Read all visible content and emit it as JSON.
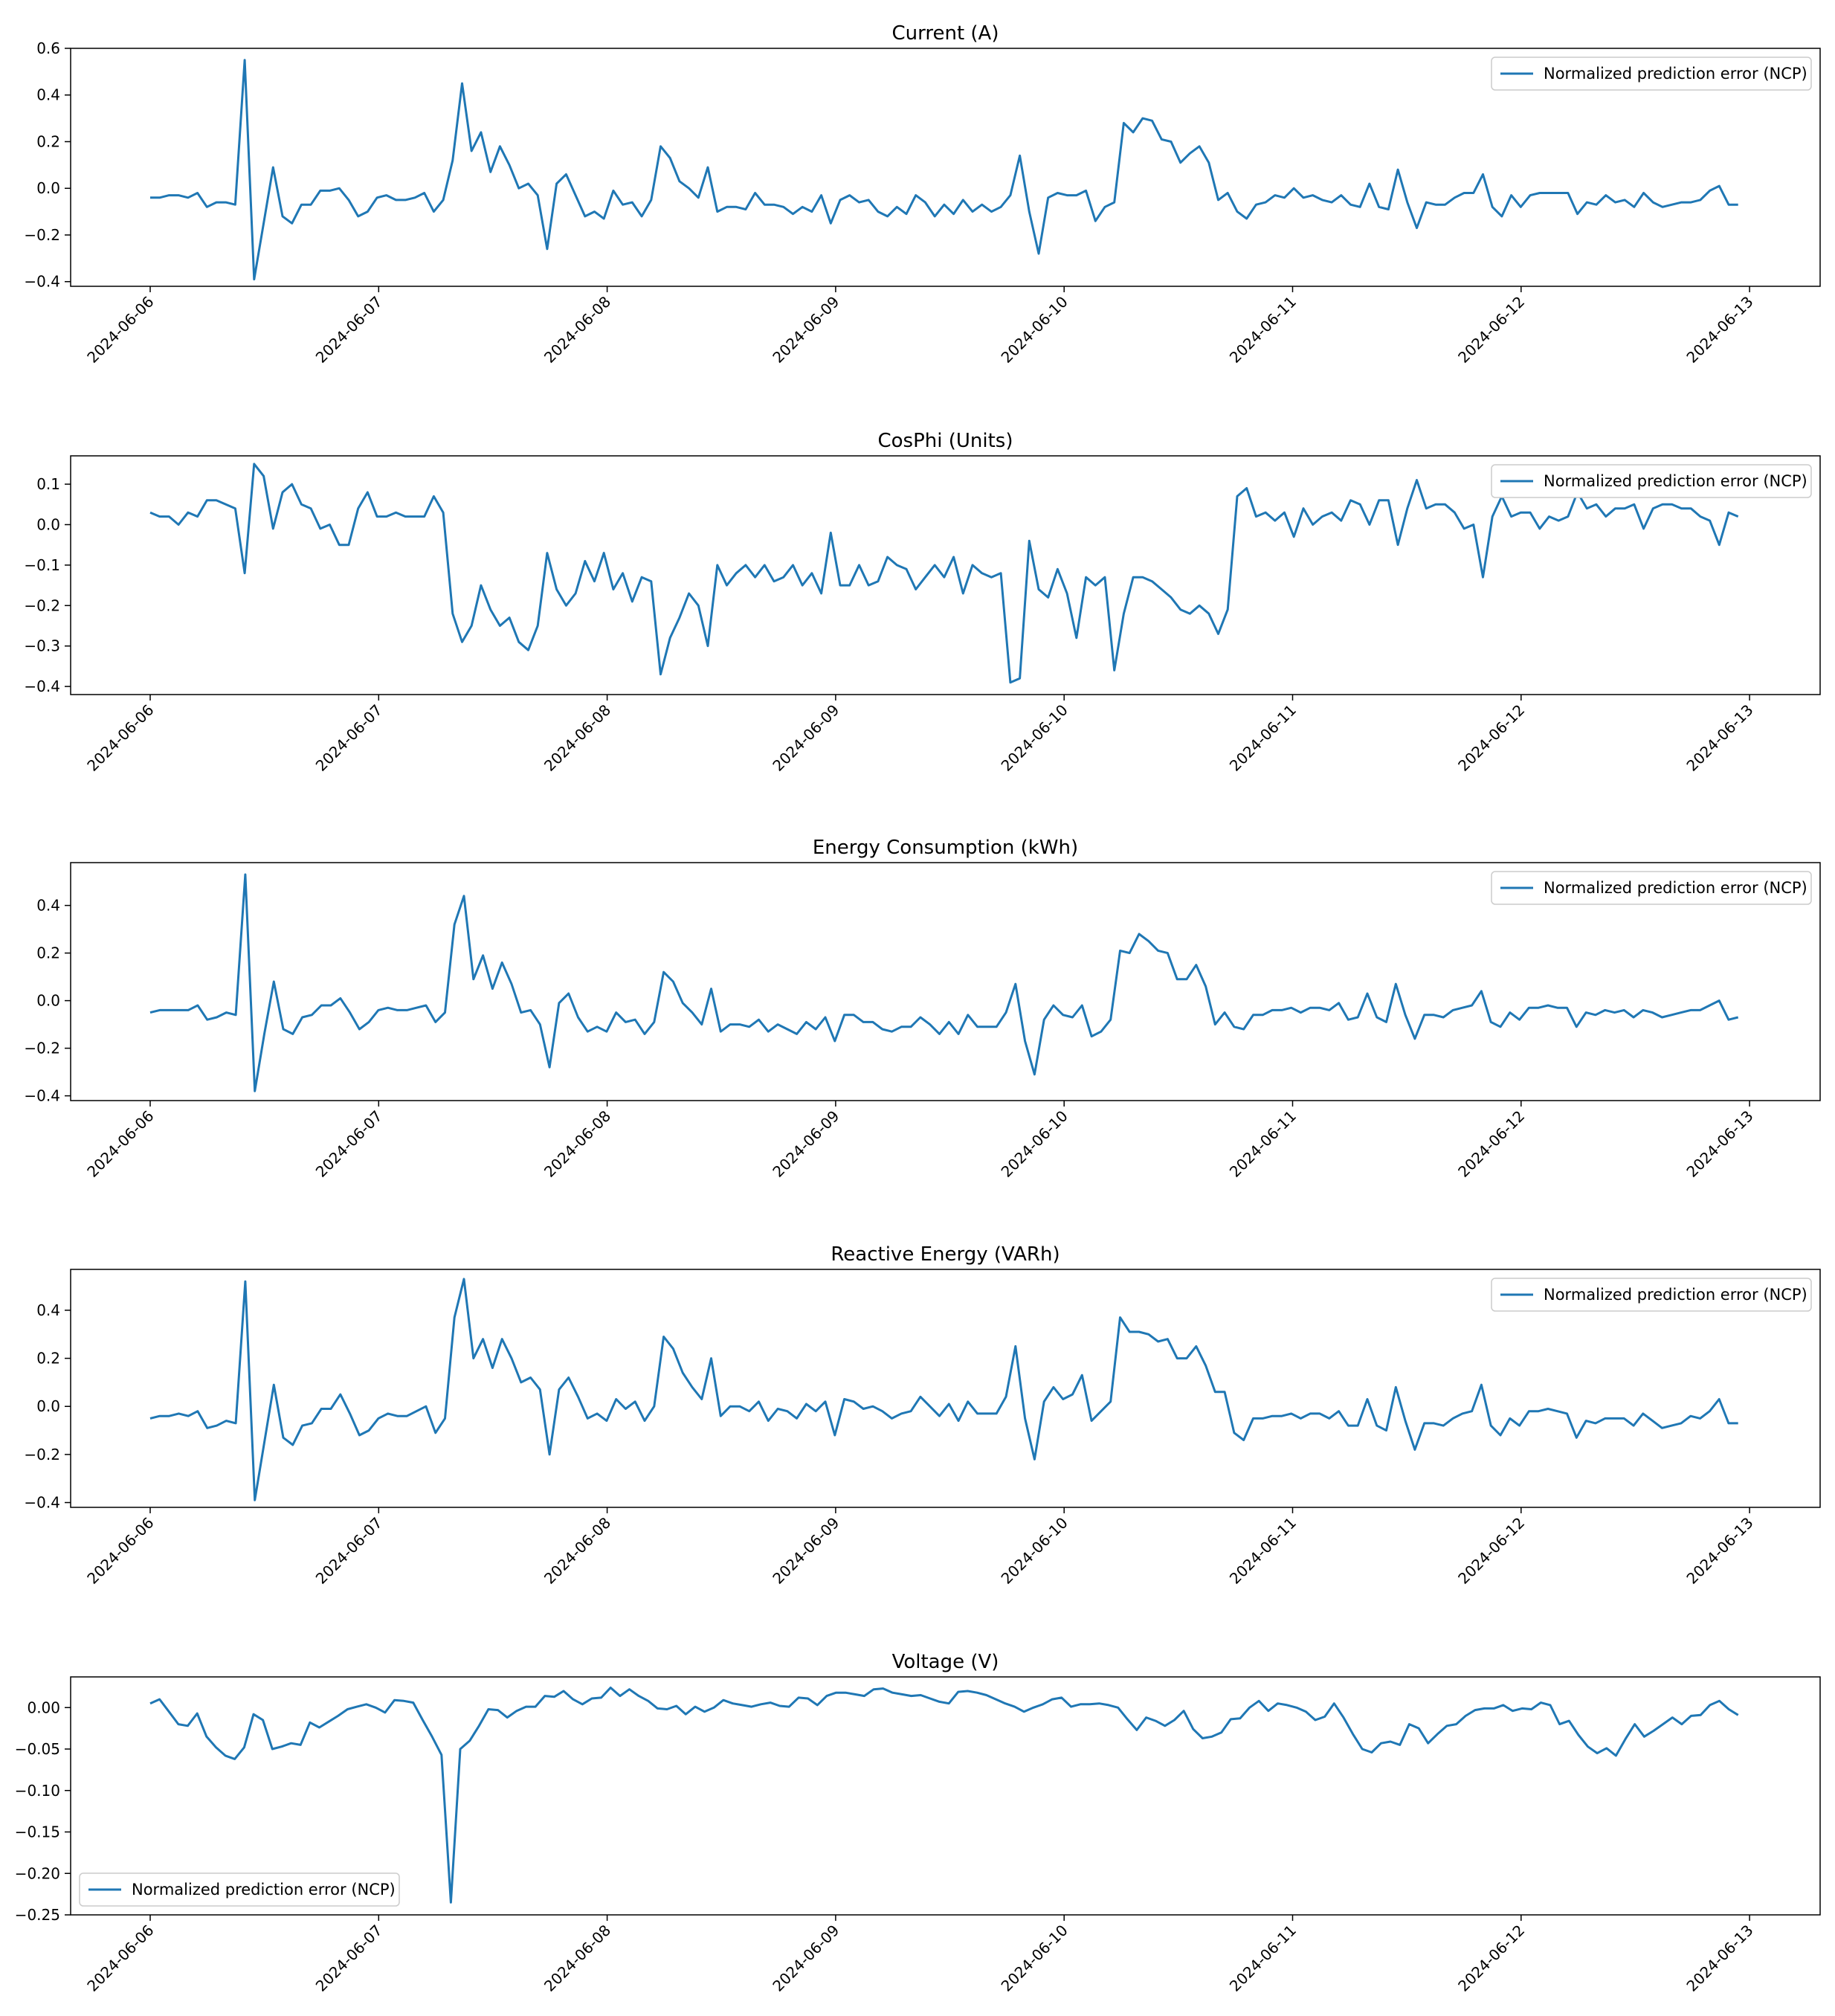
{
  "chart_data": [
    {
      "type": "line",
      "title": "Current (A)",
      "xlabel": "",
      "ylabel": "",
      "x_ticks": [
        "2024-06-06",
        "2024-06-07",
        "2024-06-08",
        "2024-06-09",
        "2024-06-10",
        "2024-06-11",
        "2024-06-12",
        "2024-06-13"
      ],
      "y_ticks": [
        "−0.4",
        "−0.2",
        "0.0",
        "0.2",
        "0.4",
        "0.6"
      ],
      "ylim": [
        -0.42,
        0.6
      ],
      "legend": "upper-right",
      "series": [
        {
          "name": "Normalized prediction error (NCP)",
          "color": "#1f77b4",
          "values": [
            -0.04,
            -0.04,
            -0.03,
            -0.03,
            -0.04,
            -0.02,
            -0.08,
            -0.06,
            -0.06,
            -0.07,
            0.55,
            -0.39,
            -0.15,
            0.09,
            -0.12,
            -0.15,
            -0.07,
            -0.07,
            -0.01,
            -0.01,
            0.0,
            -0.05,
            -0.12,
            -0.1,
            -0.04,
            -0.03,
            -0.05,
            -0.05,
            -0.04,
            -0.02,
            -0.1,
            -0.05,
            0.12,
            0.45,
            0.16,
            0.24,
            0.07,
            0.18,
            0.1,
            0.0,
            0.02,
            -0.03,
            -0.26,
            0.02,
            0.06,
            -0.03,
            -0.12,
            -0.1,
            -0.13,
            -0.01,
            -0.07,
            -0.06,
            -0.12,
            -0.05,
            0.18,
            0.13,
            0.03,
            0.0,
            -0.04,
            0.09,
            -0.1,
            -0.08,
            -0.08,
            -0.09,
            -0.02,
            -0.07,
            -0.07,
            -0.08,
            -0.11,
            -0.08,
            -0.1,
            -0.03,
            -0.15,
            -0.05,
            -0.03,
            -0.06,
            -0.05,
            -0.1,
            -0.12,
            -0.08,
            -0.11,
            -0.03,
            -0.06,
            -0.12,
            -0.07,
            -0.11,
            -0.05,
            -0.1,
            -0.07,
            -0.1,
            -0.08,
            -0.03,
            0.14,
            -0.1,
            -0.28,
            -0.04,
            -0.02,
            -0.03,
            -0.03,
            -0.01,
            -0.14,
            -0.08,
            -0.06,
            0.28,
            0.24,
            0.3,
            0.29,
            0.21,
            0.2,
            0.11,
            0.15,
            0.18,
            0.11,
            -0.05,
            -0.02,
            -0.1,
            -0.13,
            -0.07,
            -0.06,
            -0.03,
            -0.04,
            0.0,
            -0.04,
            -0.03,
            -0.05,
            -0.06,
            -0.03,
            -0.07,
            -0.08,
            0.02,
            -0.08,
            -0.09,
            0.08,
            -0.06,
            -0.17,
            -0.06,
            -0.07,
            -0.07,
            -0.04,
            -0.02,
            -0.02,
            0.06,
            -0.08,
            -0.12,
            -0.03,
            -0.08,
            -0.03,
            -0.02,
            -0.02,
            -0.02,
            -0.02,
            -0.11,
            -0.06,
            -0.07,
            -0.03,
            -0.06,
            -0.05,
            -0.08,
            -0.02,
            -0.06,
            -0.08,
            -0.07,
            -0.06,
            -0.06,
            -0.05,
            -0.01,
            0.01,
            -0.07,
            -0.07
          ]
        }
      ]
    },
    {
      "type": "line",
      "title": "CosPhi (Units)",
      "xlabel": "",
      "ylabel": "",
      "x_ticks": [
        "2024-06-06",
        "2024-06-07",
        "2024-06-08",
        "2024-06-09",
        "2024-06-10",
        "2024-06-11",
        "2024-06-12",
        "2024-06-13"
      ],
      "y_ticks": [
        "−0.4",
        "−0.3",
        "−0.2",
        "−0.1",
        "0.0",
        "0.1"
      ],
      "ylim": [
        -0.42,
        0.17
      ],
      "legend": "upper-right",
      "series": [
        {
          "name": "Normalized prediction error (NCP)",
          "color": "#1f77b4",
          "values": [
            0.03,
            0.02,
            0.02,
            0.0,
            0.03,
            0.02,
            0.06,
            0.06,
            0.05,
            0.04,
            -0.12,
            0.15,
            0.12,
            -0.01,
            0.08,
            0.1,
            0.05,
            0.04,
            -0.01,
            0.0,
            -0.05,
            -0.05,
            0.04,
            0.08,
            0.02,
            0.02,
            0.03,
            0.02,
            0.02,
            0.02,
            0.07,
            0.03,
            -0.22,
            -0.29,
            -0.25,
            -0.15,
            -0.21,
            -0.25,
            -0.23,
            -0.29,
            -0.31,
            -0.25,
            -0.07,
            -0.16,
            -0.2,
            -0.17,
            -0.09,
            -0.14,
            -0.07,
            -0.16,
            -0.12,
            -0.19,
            -0.13,
            -0.14,
            -0.37,
            -0.28,
            -0.23,
            -0.17,
            -0.2,
            -0.3,
            -0.1,
            -0.15,
            -0.12,
            -0.1,
            -0.13,
            -0.1,
            -0.14,
            -0.13,
            -0.1,
            -0.15,
            -0.12,
            -0.17,
            -0.02,
            -0.15,
            -0.15,
            -0.1,
            -0.15,
            -0.14,
            -0.08,
            -0.1,
            -0.11,
            -0.16,
            -0.13,
            -0.1,
            -0.13,
            -0.08,
            -0.17,
            -0.1,
            -0.12,
            -0.13,
            -0.12,
            -0.39,
            -0.38,
            -0.04,
            -0.16,
            -0.18,
            -0.11,
            -0.17,
            -0.28,
            -0.13,
            -0.15,
            -0.13,
            -0.36,
            -0.22,
            -0.13,
            -0.13,
            -0.14,
            -0.16,
            -0.18,
            -0.21,
            -0.22,
            -0.2,
            -0.22,
            -0.27,
            -0.21,
            0.07,
            0.09,
            0.02,
            0.03,
            0.01,
            0.03,
            -0.03,
            0.04,
            0.0,
            0.02,
            0.03,
            0.01,
            0.06,
            0.05,
            0.0,
            0.06,
            0.06,
            -0.05,
            0.04,
            0.11,
            0.04,
            0.05,
            0.05,
            0.03,
            -0.01,
            0.0,
            -0.13,
            0.02,
            0.07,
            0.02,
            0.03,
            0.03,
            -0.01,
            0.02,
            0.01,
            0.02,
            0.08,
            0.04,
            0.05,
            0.02,
            0.04,
            0.04,
            0.05,
            -0.01,
            0.04,
            0.05,
            0.05,
            0.04,
            0.04,
            0.02,
            0.01,
            -0.05,
            0.03,
            0.02
          ]
        }
      ]
    },
    {
      "type": "line",
      "title": "Energy Consumption (kWh)",
      "xlabel": "",
      "ylabel": "",
      "x_ticks": [
        "2024-06-06",
        "2024-06-07",
        "2024-06-08",
        "2024-06-09",
        "2024-06-10",
        "2024-06-11",
        "2024-06-12",
        "2024-06-13"
      ],
      "y_ticks": [
        "−0.4",
        "−0.2",
        "0.0",
        "0.2",
        "0.4"
      ],
      "ylim": [
        -0.42,
        0.58
      ],
      "legend": "upper-right",
      "series": [
        {
          "name": "Normalized prediction error (NCP)",
          "color": "#1f77b4",
          "values": [
            -0.05,
            -0.04,
            -0.04,
            -0.04,
            -0.04,
            -0.02,
            -0.08,
            -0.07,
            -0.05,
            -0.06,
            0.53,
            -0.38,
            -0.14,
            0.08,
            -0.12,
            -0.14,
            -0.07,
            -0.06,
            -0.02,
            -0.02,
            0.01,
            -0.05,
            -0.12,
            -0.09,
            -0.04,
            -0.03,
            -0.04,
            -0.04,
            -0.03,
            -0.02,
            -0.09,
            -0.05,
            0.32,
            0.44,
            0.09,
            0.19,
            0.05,
            0.16,
            0.07,
            -0.05,
            -0.04,
            -0.1,
            -0.28,
            -0.01,
            0.03,
            -0.07,
            -0.13,
            -0.11,
            -0.13,
            -0.05,
            -0.09,
            -0.08,
            -0.14,
            -0.09,
            0.12,
            0.08,
            -0.01,
            -0.05,
            -0.1,
            0.05,
            -0.13,
            -0.1,
            -0.1,
            -0.11,
            -0.08,
            -0.13,
            -0.1,
            -0.12,
            -0.14,
            -0.09,
            -0.12,
            -0.07,
            -0.17,
            -0.06,
            -0.06,
            -0.09,
            -0.09,
            -0.12,
            -0.13,
            -0.11,
            -0.11,
            -0.07,
            -0.1,
            -0.14,
            -0.09,
            -0.14,
            -0.06,
            -0.11,
            -0.11,
            -0.11,
            -0.05,
            0.07,
            -0.17,
            -0.31,
            -0.08,
            -0.02,
            -0.06,
            -0.07,
            -0.02,
            -0.15,
            -0.13,
            -0.08,
            0.21,
            0.2,
            0.28,
            0.25,
            0.21,
            0.2,
            0.09,
            0.09,
            0.15,
            0.06,
            -0.1,
            -0.05,
            -0.11,
            -0.12,
            -0.06,
            -0.06,
            -0.04,
            -0.04,
            -0.03,
            -0.05,
            -0.03,
            -0.03,
            -0.04,
            -0.01,
            -0.08,
            -0.07,
            0.03,
            -0.07,
            -0.09,
            0.07,
            -0.06,
            -0.16,
            -0.06,
            -0.06,
            -0.07,
            -0.04,
            -0.03,
            -0.02,
            0.04,
            -0.09,
            -0.11,
            -0.05,
            -0.08,
            -0.03,
            -0.03,
            -0.02,
            -0.03,
            -0.03,
            -0.11,
            -0.05,
            -0.06,
            -0.04,
            -0.05,
            -0.04,
            -0.07,
            -0.04,
            -0.05,
            -0.07,
            -0.06,
            -0.05,
            -0.04,
            -0.04,
            -0.02,
            0.0,
            -0.08,
            -0.07
          ]
        }
      ]
    },
    {
      "type": "line",
      "title": "Reactive Energy (VARh)",
      "xlabel": "",
      "ylabel": "",
      "x_ticks": [
        "2024-06-06",
        "2024-06-07",
        "2024-06-08",
        "2024-06-09",
        "2024-06-10",
        "2024-06-11",
        "2024-06-12",
        "2024-06-13"
      ],
      "y_ticks": [
        "−0.4",
        "−0.2",
        "0.0",
        "0.2",
        "0.4"
      ],
      "ylim": [
        -0.42,
        0.57
      ],
      "legend": "upper-right",
      "series": [
        {
          "name": "Normalized prediction error (NCP)",
          "color": "#1f77b4",
          "values": [
            -0.05,
            -0.04,
            -0.04,
            -0.03,
            -0.04,
            -0.02,
            -0.09,
            -0.08,
            -0.06,
            -0.07,
            0.52,
            -0.39,
            -0.15,
            0.09,
            -0.13,
            -0.16,
            -0.08,
            -0.07,
            -0.01,
            -0.01,
            0.05,
            -0.03,
            -0.12,
            -0.1,
            -0.05,
            -0.03,
            -0.04,
            -0.04,
            -0.02,
            0.0,
            -0.11,
            -0.05,
            0.37,
            0.53,
            0.2,
            0.28,
            0.16,
            0.28,
            0.2,
            0.1,
            0.12,
            0.07,
            -0.2,
            0.07,
            0.12,
            0.04,
            -0.05,
            -0.03,
            -0.06,
            0.03,
            -0.01,
            0.02,
            -0.06,
            0.0,
            0.29,
            0.24,
            0.14,
            0.08,
            0.03,
            0.2,
            -0.04,
            0.0,
            0.0,
            -0.02,
            0.02,
            -0.06,
            -0.01,
            -0.02,
            -0.05,
            0.01,
            -0.02,
            0.02,
            -0.12,
            0.03,
            0.02,
            -0.01,
            0.0,
            -0.02,
            -0.05,
            -0.03,
            -0.02,
            0.04,
            0.0,
            -0.04,
            0.01,
            -0.06,
            0.02,
            -0.03,
            -0.03,
            -0.03,
            0.04,
            0.25,
            -0.05,
            -0.22,
            0.02,
            0.08,
            0.03,
            0.05,
            0.13,
            -0.06,
            -0.02,
            0.02,
            0.37,
            0.31,
            0.31,
            0.3,
            0.27,
            0.28,
            0.2,
            0.2,
            0.25,
            0.17,
            0.06,
            0.06,
            -0.11,
            -0.14,
            -0.05,
            -0.05,
            -0.04,
            -0.04,
            -0.03,
            -0.05,
            -0.03,
            -0.03,
            -0.05,
            -0.02,
            -0.08,
            -0.08,
            0.03,
            -0.08,
            -0.1,
            0.08,
            -0.06,
            -0.18,
            -0.07,
            -0.07,
            -0.08,
            -0.05,
            -0.03,
            -0.02,
            0.09,
            -0.08,
            -0.12,
            -0.05,
            -0.08,
            -0.02,
            -0.02,
            -0.01,
            -0.02,
            -0.03,
            -0.13,
            -0.06,
            -0.07,
            -0.05,
            -0.05,
            -0.05,
            -0.08,
            -0.03,
            -0.06,
            -0.09,
            -0.08,
            -0.07,
            -0.04,
            -0.05,
            -0.02,
            0.03,
            -0.07,
            -0.07
          ]
        }
      ]
    },
    {
      "type": "line",
      "title": "Voltage (V)",
      "xlabel": "",
      "ylabel": "",
      "x_ticks": [
        "2024-06-06",
        "2024-06-07",
        "2024-06-08",
        "2024-06-09",
        "2024-06-10",
        "2024-06-11",
        "2024-06-12",
        "2024-06-13"
      ],
      "y_ticks": [
        "−0.25",
        "−0.20",
        "−0.15",
        "−0.10",
        "−0.05",
        "0.00"
      ],
      "ylim": [
        -0.25,
        0.037
      ],
      "legend": "lower-left",
      "series": [
        {
          "name": "Normalized prediction error (NCP)",
          "color": "#1f77b4",
          "values": [
            0.005,
            0.01,
            -0.005,
            -0.02,
            -0.022,
            -0.007,
            -0.035,
            -0.048,
            -0.058,
            -0.062,
            -0.048,
            -0.008,
            -0.015,
            -0.05,
            -0.047,
            -0.043,
            -0.045,
            -0.018,
            -0.024,
            -0.017,
            -0.01,
            -0.002,
            0.001,
            0.004,
            0.0,
            -0.006,
            0.009,
            0.008,
            0.006,
            -0.015,
            -0.035,
            -0.057,
            -0.235,
            -0.05,
            -0.04,
            -0.022,
            -0.002,
            -0.003,
            -0.012,
            -0.004,
            0.001,
            0.001,
            0.014,
            0.013,
            0.02,
            0.01,
            0.004,
            0.011,
            0.012,
            0.024,
            0.014,
            0.022,
            0.014,
            0.008,
            -0.001,
            -0.002,
            0.002,
            -0.008,
            0.001,
            -0.005,
            0.0,
            0.009,
            0.005,
            0.003,
            0.001,
            0.004,
            0.006,
            0.002,
            0.001,
            0.012,
            0.011,
            0.003,
            0.014,
            0.018,
            0.018,
            0.016,
            0.014,
            0.022,
            0.023,
            0.018,
            0.016,
            0.014,
            0.015,
            0.011,
            0.007,
            0.005,
            0.019,
            0.02,
            0.018,
            0.015,
            0.01,
            0.005,
            0.001,
            -0.005,
            0.0,
            0.004,
            0.01,
            0.012,
            0.001,
            0.004,
            0.004,
            0.005,
            0.003,
            0.0,
            -0.014,
            -0.027,
            -0.012,
            -0.016,
            -0.022,
            -0.015,
            -0.004,
            -0.026,
            -0.037,
            -0.035,
            -0.03,
            -0.014,
            -0.013,
            0.0,
            0.008,
            -0.004,
            0.005,
            0.003,
            0.0,
            -0.005,
            -0.015,
            -0.011,
            0.005,
            -0.012,
            -0.032,
            -0.05,
            -0.054,
            -0.043,
            -0.041,
            -0.045,
            -0.02,
            -0.025,
            -0.043,
            -0.032,
            -0.022,
            -0.02,
            -0.01,
            -0.003,
            -0.001,
            -0.001,
            0.003,
            -0.004,
            -0.001,
            -0.002,
            0.006,
            0.003,
            -0.02,
            -0.016,
            -0.033,
            -0.047,
            -0.055,
            -0.049,
            -0.058,
            -0.038,
            -0.02,
            -0.035,
            -0.028,
            -0.02,
            -0.012,
            -0.02,
            -0.01,
            -0.009,
            0.003,
            0.008,
            -0.002,
            -0.009
          ]
        }
      ]
    }
  ]
}
